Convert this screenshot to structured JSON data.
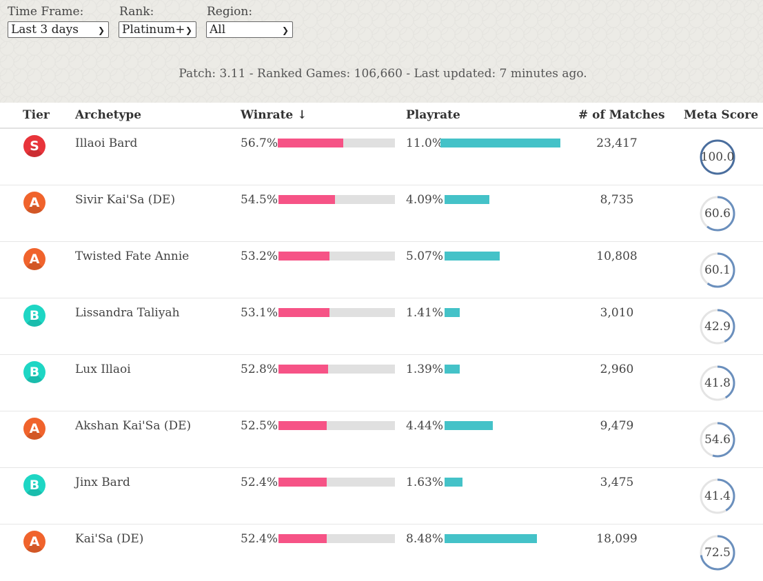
{
  "filters": {
    "time_frame": {
      "label": "Time Frame:",
      "value": "Last 3 days"
    },
    "rank": {
      "label": "Rank:",
      "value": "Platinum+"
    },
    "region": {
      "label": "Region:",
      "value": "All"
    }
  },
  "patch_info": "Patch: 3.11 - Ranked Games: 106,660 - Last updated: 7 minutes ago.",
  "columns": {
    "tier": "Tier",
    "archetype": "Archetype",
    "winrate": "Winrate ↓",
    "playrate": "Playrate",
    "matches": "# of Matches",
    "meta_score": "Meta Score"
  },
  "colors": {
    "winrate_fill": "#f65386",
    "playrate_fill": "#44c2c8",
    "meta_ring_full": "#4a6e9e",
    "meta_ring": "#6a8fbd",
    "tier_S": "#e8343a",
    "tier_A": "#f0632c",
    "tier_B": "#1ed6c4"
  },
  "rows": [
    {
      "tier": "S",
      "archetype": "Illaoi Bard",
      "winrate": "56.7%",
      "winrate_value": 56.7,
      "playrate": "11.0%",
      "playrate_value": 11.0,
      "matches": "23,417",
      "meta_score": "100.0",
      "meta_value": 100.0
    },
    {
      "tier": "A",
      "archetype": "Sivir Kai'Sa (DE)",
      "winrate": "54.5%",
      "winrate_value": 54.5,
      "playrate": "4.09%",
      "playrate_value": 4.09,
      "matches": "8,735",
      "meta_score": "60.6",
      "meta_value": 60.6
    },
    {
      "tier": "A",
      "archetype": "Twisted Fate Annie",
      "winrate": "53.2%",
      "winrate_value": 53.2,
      "playrate": "5.07%",
      "playrate_value": 5.07,
      "matches": "10,808",
      "meta_score": "60.1",
      "meta_value": 60.1
    },
    {
      "tier": "B",
      "archetype": "Lissandra Taliyah",
      "winrate": "53.1%",
      "winrate_value": 53.1,
      "playrate": "1.41%",
      "playrate_value": 1.41,
      "matches": "3,010",
      "meta_score": "42.9",
      "meta_value": 42.9
    },
    {
      "tier": "B",
      "archetype": "Lux Illaoi",
      "winrate": "52.8%",
      "winrate_value": 52.8,
      "playrate": "1.39%",
      "playrate_value": 1.39,
      "matches": "2,960",
      "meta_score": "41.8",
      "meta_value": 41.8
    },
    {
      "tier": "A",
      "archetype": "Akshan Kai'Sa (DE)",
      "winrate": "52.5%",
      "winrate_value": 52.5,
      "playrate": "4.44%",
      "playrate_value": 4.44,
      "matches": "9,479",
      "meta_score": "54.6",
      "meta_value": 54.6
    },
    {
      "tier": "B",
      "archetype": "Jinx Bard",
      "winrate": "52.4%",
      "winrate_value": 52.4,
      "playrate": "1.63%",
      "playrate_value": 1.63,
      "matches": "3,475",
      "meta_score": "41.4",
      "meta_value": 41.4
    },
    {
      "tier": "A",
      "archetype": "Kai'Sa (DE)",
      "winrate": "52.4%",
      "winrate_value": 52.4,
      "playrate": "8.48%",
      "playrate_value": 8.48,
      "matches": "18,099",
      "meta_score": "72.5",
      "meta_value": 72.5
    }
  ]
}
